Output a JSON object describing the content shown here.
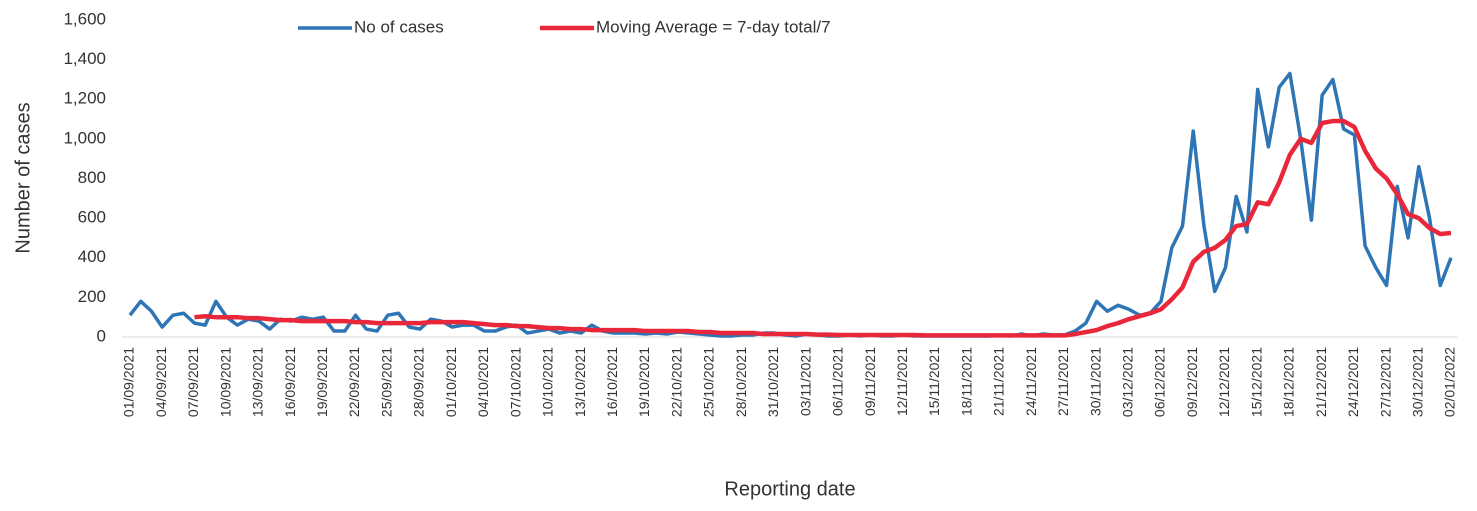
{
  "chart_data": {
    "type": "line",
    "x_label": "Reporting date",
    "y_label": "Number of cases",
    "legend": "top",
    "ylim": [
      0,
      1600
    ],
    "yticks": [
      0,
      200,
      400,
      600,
      800,
      {
        "value": 1000,
        "label": "1,000"
      },
      {
        "value": 1200,
        "label": "1,200"
      },
      {
        "value": 1400,
        "label": "1,400"
      },
      {
        "value": 1600,
        "label": "1,600"
      }
    ],
    "categories": [
      "01/09/2021",
      null,
      null,
      "04/09/2021",
      null,
      null,
      "07/09/2021",
      null,
      null,
      "10/09/2021",
      null,
      null,
      "13/09/2021",
      null,
      null,
      "16/09/2021",
      null,
      null,
      "19/09/2021",
      null,
      null,
      "22/09/2021",
      null,
      null,
      "25/09/2021",
      null,
      null,
      "28/09/2021",
      null,
      null,
      "01/10/2021",
      null,
      null,
      "04/10/2021",
      null,
      null,
      "07/10/2021",
      null,
      null,
      "10/10/2021",
      null,
      null,
      "13/10/2021",
      null,
      null,
      "16/10/2021",
      null,
      null,
      "19/10/2021",
      null,
      null,
      "22/10/2021",
      null,
      null,
      "25/10/2021",
      null,
      null,
      "28/10/2021",
      null,
      null,
      "31/10/2021",
      null,
      null,
      "03/11/2021",
      null,
      null,
      "06/11/2021",
      null,
      null,
      "09/11/2021",
      null,
      null,
      "12/11/2021",
      null,
      null,
      "15/11/2021",
      null,
      null,
      "18/11/2021",
      null,
      null,
      "21/11/2021",
      null,
      null,
      "24/11/2021",
      null,
      null,
      "27/11/2021",
      null,
      null,
      "30/11/2021",
      null,
      null,
      "03/12/2021",
      null,
      null,
      "06/12/2021",
      null,
      null,
      "09/12/2021",
      null,
      null,
      "12/12/2021",
      null,
      null,
      "15/12/2021",
      null,
      null,
      "18/12/2021",
      null,
      null,
      "21/12/2021",
      null,
      null,
      "24/12/2021",
      null,
      null,
      "27/12/2021",
      null,
      null,
      "30/12/2021",
      null,
      null,
      "02/01/2022"
    ],
    "series": [
      {
        "name": "No of cases",
        "color": "#2e75b6",
        "values": [
          110,
          180,
          130,
          50,
          110,
          120,
          70,
          60,
          180,
          100,
          60,
          90,
          80,
          40,
          90,
          80,
          100,
          90,
          100,
          30,
          30,
          110,
          40,
          30,
          110,
          120,
          50,
          40,
          90,
          80,
          50,
          60,
          60,
          30,
          30,
          50,
          60,
          20,
          30,
          40,
          20,
          30,
          20,
          60,
          30,
          20,
          20,
          20,
          15,
          20,
          15,
          25,
          20,
          15,
          10,
          5,
          5,
          10,
          10,
          20,
          20,
          10,
          5,
          15,
          10,
          5,
          5,
          10,
          5,
          10,
          5,
          5,
          10,
          5,
          5,
          5,
          5,
          5,
          5,
          5,
          5,
          10,
          5,
          15,
          5,
          15,
          10,
          10,
          30,
          70,
          180,
          130,
          160,
          140,
          110,
          120,
          180,
          450,
          560,
          1040,
          560,
          230,
          350,
          710,
          530,
          1250,
          960,
          1260,
          1330,
          1000,
          590,
          1220,
          1300,
          1050,
          1020,
          460,
          350,
          260,
          760,
          500,
          860,
          600,
          260,
          400
        ]
      },
      {
        "name": "Moving Average = 7-day total/7",
        "color": "#e8283a",
        "values": [
          null,
          null,
          null,
          null,
          null,
          null,
          100,
          105,
          100,
          100,
          100,
          95,
          95,
          90,
          85,
          85,
          80,
          80,
          80,
          80,
          80,
          75,
          75,
          70,
          70,
          70,
          70,
          70,
          75,
          75,
          75,
          75,
          70,
          65,
          60,
          60,
          55,
          55,
          50,
          45,
          45,
          40,
          40,
          35,
          35,
          35,
          35,
          35,
          30,
          30,
          30,
          30,
          30,
          25,
          25,
          20,
          20,
          20,
          20,
          15,
          15,
          15,
          15,
          15,
          12,
          12,
          10,
          10,
          10,
          10,
          10,
          10,
          10,
          10,
          8,
          8,
          8,
          8,
          8,
          8,
          8,
          8,
          8,
          8,
          8,
          8,
          8,
          8,
          15,
          25,
          35,
          55,
          70,
          90,
          105,
          120,
          140,
          190,
          250,
          380,
          430,
          450,
          490,
          560,
          570,
          680,
          670,
          780,
          920,
          1000,
          980,
          1080,
          1090,
          1090,
          1060,
          940,
          850,
          800,
          720,
          620,
          600,
          550,
          520,
          525
        ]
      }
    ]
  }
}
